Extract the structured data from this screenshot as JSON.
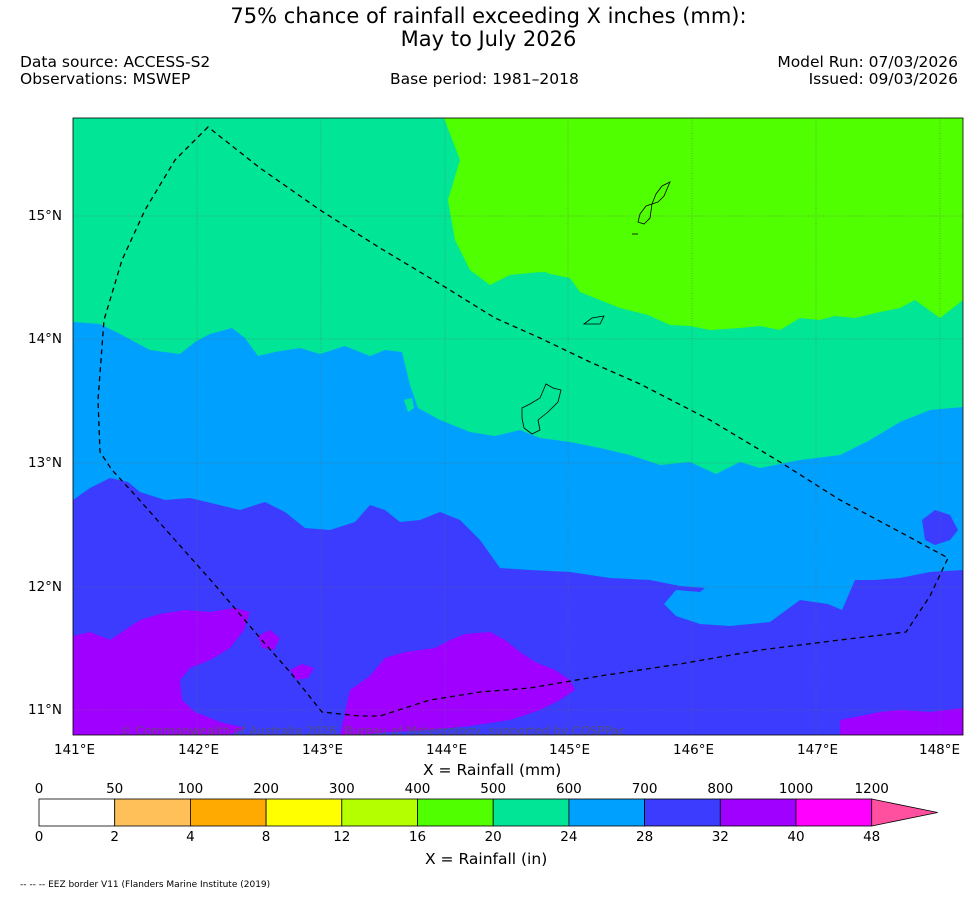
{
  "title": {
    "line1": "75% chance of rainfall exceeding X inches (mm):",
    "line2": "May to July 2026"
  },
  "header": {
    "data_source": "Data source: ACCESS-S2",
    "observations": "Observations: MSWEP",
    "base_period": "Base period: 1981–2018",
    "model_run": "Model Run: 07/03/2026",
    "issued": "Issued: 09/03/2026"
  },
  "map": {
    "lat_labels": [
      "15°N",
      "14°N",
      "13°N",
      "12°N",
      "11°N"
    ],
    "lon_labels": [
      "141°E",
      "142°E",
      "143°E",
      "144°E",
      "145°E",
      "146°E",
      "147°E",
      "148°E"
    ],
    "copyright": "© Commonwealth of Australia 2026, Bureau of Meteorology, supported by COSPPac"
  },
  "legend": {
    "mm_title": "X = Rainfall (mm)",
    "in_title": "X = Rainfall (in)",
    "mm_ticks": [
      "0",
      "50",
      "100",
      "200",
      "300",
      "400",
      "500",
      "600",
      "700",
      "800",
      "1000",
      "1200"
    ],
    "in_ticks": [
      "0",
      "2",
      "4",
      "8",
      "12",
      "16",
      "20",
      "24",
      "28",
      "32",
      "40",
      "48"
    ],
    "colors": [
      "#ffffff",
      "#ffc05a",
      "#ffaa00",
      "#ffff00",
      "#b4ff00",
      "#50ff00",
      "#00e696",
      "#00a0ff",
      "#3c3cff",
      "#a000ff",
      "#ff00ff",
      "#ff50a0"
    ]
  },
  "footnote": "-- -- -- EEZ border V11 (Flanders Marine Institute (2019)"
}
